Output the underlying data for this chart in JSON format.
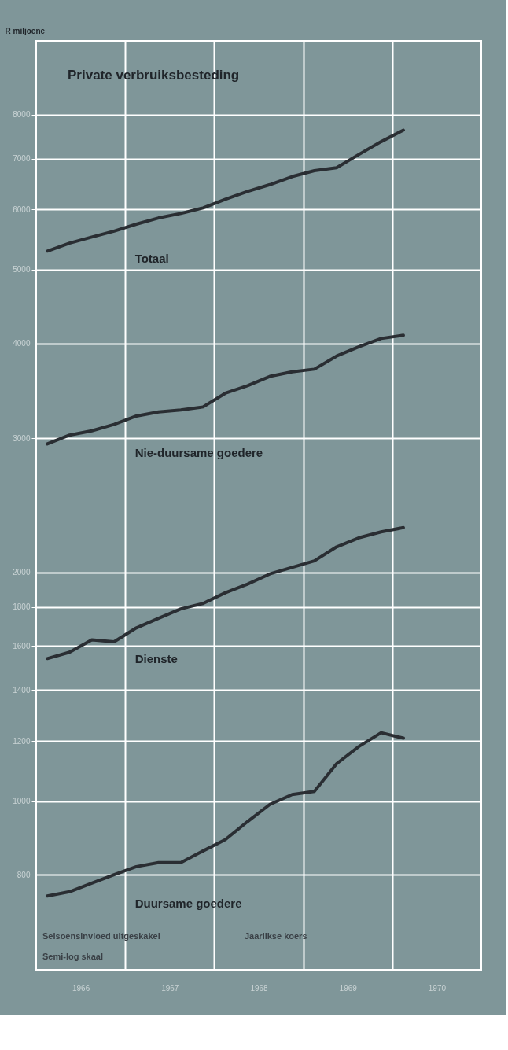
{
  "chart_data": {
    "type": "line",
    "title": "Private verbruiksbesteding",
    "ylabel": "R miljoene",
    "x": [
      1966.125,
      1966.375,
      1966.625,
      1966.875,
      1967.125,
      1967.375,
      1967.625,
      1967.875,
      1968.125,
      1968.375,
      1968.625,
      1968.875,
      1969.125,
      1969.375,
      1969.625,
      1969.875,
      1970.125
    ],
    "series": [
      {
        "name": "Totaal",
        "color": "#2a2e33",
        "values": [
          5290,
          5420,
          5520,
          5620,
          5740,
          5850,
          5930,
          6030,
          6190,
          6340,
          6470,
          6630,
          6750,
          6810,
          7090,
          7370,
          7630
        ]
      },
      {
        "name": "Nie-duursame goedere",
        "color": "#2a2e33",
        "values": [
          2950,
          3030,
          3070,
          3130,
          3210,
          3250,
          3270,
          3300,
          3440,
          3520,
          3620,
          3670,
          3700,
          3850,
          3960,
          4060,
          4100
        ]
      },
      {
        "name": "Dienste",
        "color": "#2a2e33",
        "values": [
          1540,
          1570,
          1630,
          1620,
          1690,
          1740,
          1790,
          1820,
          1880,
          1930,
          1990,
          2030,
          2070,
          2160,
          2220,
          2260,
          2290
        ]
      },
      {
        "name": "Duursame goedere",
        "color": "#2a2e33",
        "values": [
          750,
          760,
          780,
          800,
          820,
          830,
          830,
          860,
          890,
          940,
          990,
          1020,
          1030,
          1120,
          1180,
          1230,
          1210
        ]
      }
    ],
    "xlim": [
      1966,
      1971
    ],
    "xticks": [
      {
        "value": 1966.5,
        "label": "1966"
      },
      {
        "value": 1967.5,
        "label": "1967"
      },
      {
        "value": 1968.5,
        "label": "1968"
      },
      {
        "value": 1969.5,
        "label": "1969"
      },
      {
        "value": 1970.5,
        "label": "1970"
      },
      {
        "value": 1967,
        "label": null
      },
      {
        "value": 1968,
        "label": null
      },
      {
        "value": 1969,
        "label": null
      },
      {
        "value": 1970,
        "label": null
      }
    ],
    "ylim": [
      600,
      10000
    ],
    "yticks": [
      800,
      1000,
      1200,
      1400,
      1600,
      1800,
      2000,
      3000,
      4000,
      5000,
      6000,
      7000,
      8000
    ],
    "log": "y",
    "grid": true,
    "legend": false,
    "marker": "none",
    "line_style": "solid",
    "annotations": [
      "Seisoensinvloed uitgeskakel",
      "Jaarlikse koers",
      "Semi-log skaal"
    ]
  }
}
